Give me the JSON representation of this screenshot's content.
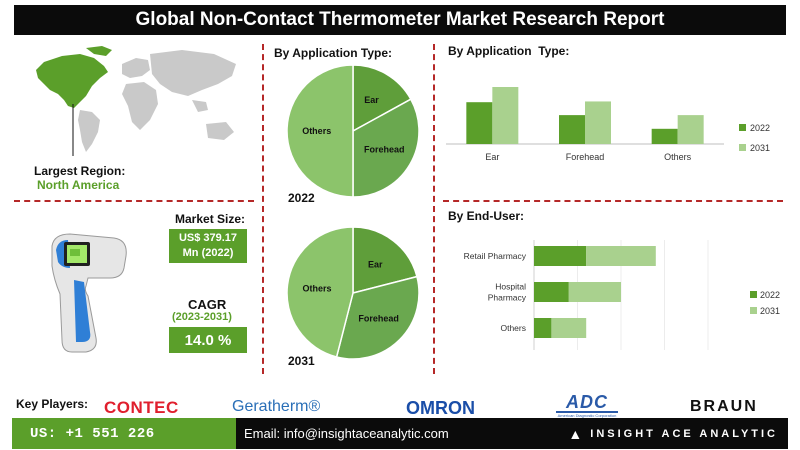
{
  "title": "Global Non-Contact Thermometer Market Research Report",
  "region": {
    "label": "Largest Region:",
    "value": "North America"
  },
  "market_size": {
    "label": "Market Size:",
    "value_line1": "US$ 379.17",
    "value_line2": "Mn (2022)"
  },
  "cagr": {
    "label": "CAGR",
    "period": "(2023-2031)",
    "value": "14.0 %"
  },
  "key_players": {
    "label": "Key Players:",
    "logos": [
      "CONTEC",
      "Geratherm®",
      "OMRON",
      "ADC",
      "American Diagnostic Corporation",
      "BRAUN"
    ]
  },
  "contact": {
    "phone": "US: +1 551 226",
    "email": "Email: info@insightaceanalytic.com",
    "brand": "INSIGHT ACE ANALYTIC"
  },
  "colors": {
    "dark_green": "#5b9f2a",
    "light_green": "#a9d18e",
    "mid_green": "#88bf5f",
    "pie_light": "#8cc46b",
    "dashed_red": "#b52828"
  },
  "chart_data": [
    {
      "type": "pie",
      "title": "By Application Type:",
      "caption": "2022",
      "slices": [
        {
          "label": "Ear",
          "value": 17
        },
        {
          "label": "Forehead",
          "value": 33
        },
        {
          "label": "Others",
          "value": 50
        }
      ]
    },
    {
      "type": "pie",
      "caption": "2031",
      "slices": [
        {
          "label": "Ear",
          "value": 21
        },
        {
          "label": "Forehead",
          "value": 33
        },
        {
          "label": "Others",
          "value": 46
        }
      ]
    },
    {
      "type": "bar",
      "title": "By Application  Type:",
      "categories": [
        "Ear",
        "Forehead",
        "Others"
      ],
      "series": [
        {
          "name": "2022",
          "values": [
            55,
            38,
            20
          ]
        },
        {
          "name": "2031",
          "values": [
            75,
            56,
            38
          ]
        }
      ],
      "ylim": [
        0,
        100
      ],
      "legend": "right"
    },
    {
      "type": "bar",
      "orientation": "horizontal-stacked",
      "title": "By End-User:",
      "categories": [
        "Retail Pharmacy",
        "Hospital Pharmacy",
        "Others"
      ],
      "series": [
        {
          "name": "2022",
          "values": [
            30,
            20,
            10
          ]
        },
        {
          "name": "2031",
          "values": [
            40,
            30,
            20
          ]
        }
      ],
      "xlim": [
        0,
        100
      ],
      "legend": "right"
    }
  ]
}
